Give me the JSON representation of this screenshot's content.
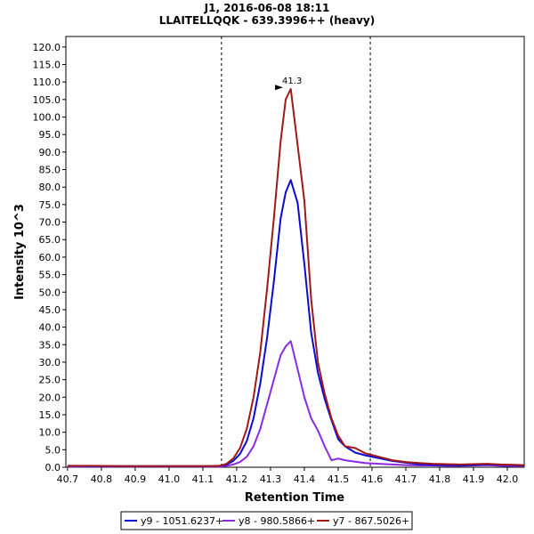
{
  "chart_data": {
    "type": "line",
    "title": "J1, 2016-06-08 18:11",
    "subtitle": "LLAITELLQQK - 639.3996++ (heavy)",
    "xlabel": "Retention Time",
    "ylabel": "Intensity 10^3",
    "xlim": [
      40.695,
      42.05
    ],
    "ylim": [
      0,
      123
    ],
    "x_ticks": [
      "40.7",
      "40.8",
      "40.9",
      "41.0",
      "41.1",
      "41.2",
      "41.3",
      "41.4",
      "41.5",
      "41.6",
      "41.7",
      "41.8",
      "41.9",
      "42.0"
    ],
    "y_ticks": [
      "0.0",
      "5.0",
      "10.0",
      "15.0",
      "20.0",
      "25.0",
      "30.0",
      "35.0",
      "40.0",
      "45.0",
      "50.0",
      "55.0",
      "60.0",
      "65.0",
      "70.0",
      "75.0",
      "80.0",
      "85.0",
      "90.0",
      "95.0",
      "100.0",
      "105.0",
      "110.0",
      "115.0",
      "120.0"
    ],
    "boundaries": [
      41.155,
      41.595
    ],
    "grid": false,
    "legend_position": "bottom",
    "annotation": {
      "text": "41.3",
      "x": 41.345,
      "y": 108.2,
      "color": "#a01818"
    },
    "series": [
      {
        "name": "y9 - 1051.6237+",
        "color": "#0a0ad6",
        "x": [
          40.7,
          40.78,
          40.86,
          40.94,
          41.02,
          41.1,
          41.15,
          41.17,
          41.19,
          41.21,
          41.23,
          41.25,
          41.27,
          41.29,
          41.31,
          41.33,
          41.345,
          41.36,
          41.38,
          41.4,
          41.42,
          41.44,
          41.46,
          41.48,
          41.5,
          41.52,
          41.55,
          41.58,
          41.62,
          41.66,
          41.7,
          41.74,
          41.78,
          41.82,
          41.86,
          41.9,
          41.94,
          41.98,
          42.02,
          42.05
        ],
        "y": [
          0.4,
          0.3,
          0.3,
          0.3,
          0.3,
          0.3,
          0.4,
          0.8,
          1.8,
          3.8,
          7.5,
          14,
          24,
          37,
          53,
          71,
          78.5,
          82,
          75.5,
          58,
          38.5,
          27,
          19.5,
          13.5,
          8,
          6,
          4.2,
          3.4,
          2.6,
          1.8,
          1.3,
          0.9,
          0.7,
          0.6,
          0.5,
          0.6,
          0.8,
          0.7,
          0.6,
          0.5
        ]
      },
      {
        "name": "y8 - 980.5866+",
        "color": "#8a2be2",
        "x": [
          40.7,
          40.78,
          40.86,
          40.94,
          41.02,
          41.1,
          41.15,
          41.17,
          41.19,
          41.21,
          41.23,
          41.25,
          41.27,
          41.29,
          41.31,
          41.33,
          41.345,
          41.36,
          41.38,
          41.4,
          41.42,
          41.44,
          41.46,
          41.48,
          41.5,
          41.52,
          41.55,
          41.58,
          41.62,
          41.66,
          41.7,
          41.74,
          41.78,
          41.82,
          41.86,
          41.9,
          41.94,
          41.98,
          42.02,
          42.05
        ],
        "y": [
          0.2,
          0.2,
          0.2,
          0.2,
          0.2,
          0.2,
          0.2,
          0.4,
          0.8,
          1.5,
          3,
          6,
          11,
          18,
          25,
          32,
          34.5,
          36,
          28,
          20,
          14,
          10.5,
          6,
          2,
          2.5,
          2,
          1.6,
          1.2,
          1,
          0.8,
          0.6,
          0.5,
          0.5,
          0.4,
          0.4,
          0.5,
          0.6,
          0.4,
          0.3,
          0.3
        ]
      },
      {
        "name": "y7 - 867.5026+",
        "color": "#a01818",
        "x": [
          40.7,
          40.78,
          40.86,
          40.94,
          41.02,
          41.1,
          41.15,
          41.17,
          41.19,
          41.21,
          41.23,
          41.25,
          41.27,
          41.29,
          41.31,
          41.33,
          41.345,
          41.36,
          41.38,
          41.4,
          41.42,
          41.44,
          41.46,
          41.48,
          41.5,
          41.52,
          41.55,
          41.58,
          41.62,
          41.66,
          41.7,
          41.74,
          41.78,
          41.82,
          41.86,
          41.9,
          41.94,
          41.98,
          42.02,
          42.05
        ],
        "y": [
          0.4,
          0.4,
          0.3,
          0.3,
          0.3,
          0.3,
          0.4,
          1,
          2.5,
          5.5,
          11,
          20,
          33,
          51,
          71,
          93,
          105,
          108,
          92,
          76,
          48,
          30,
          21,
          14,
          9,
          6,
          5.5,
          4,
          3,
          2,
          1.5,
          1.2,
          1,
          0.9,
          0.8,
          0.9,
          1,
          0.8,
          0.7,
          0.6
        ]
      }
    ]
  }
}
